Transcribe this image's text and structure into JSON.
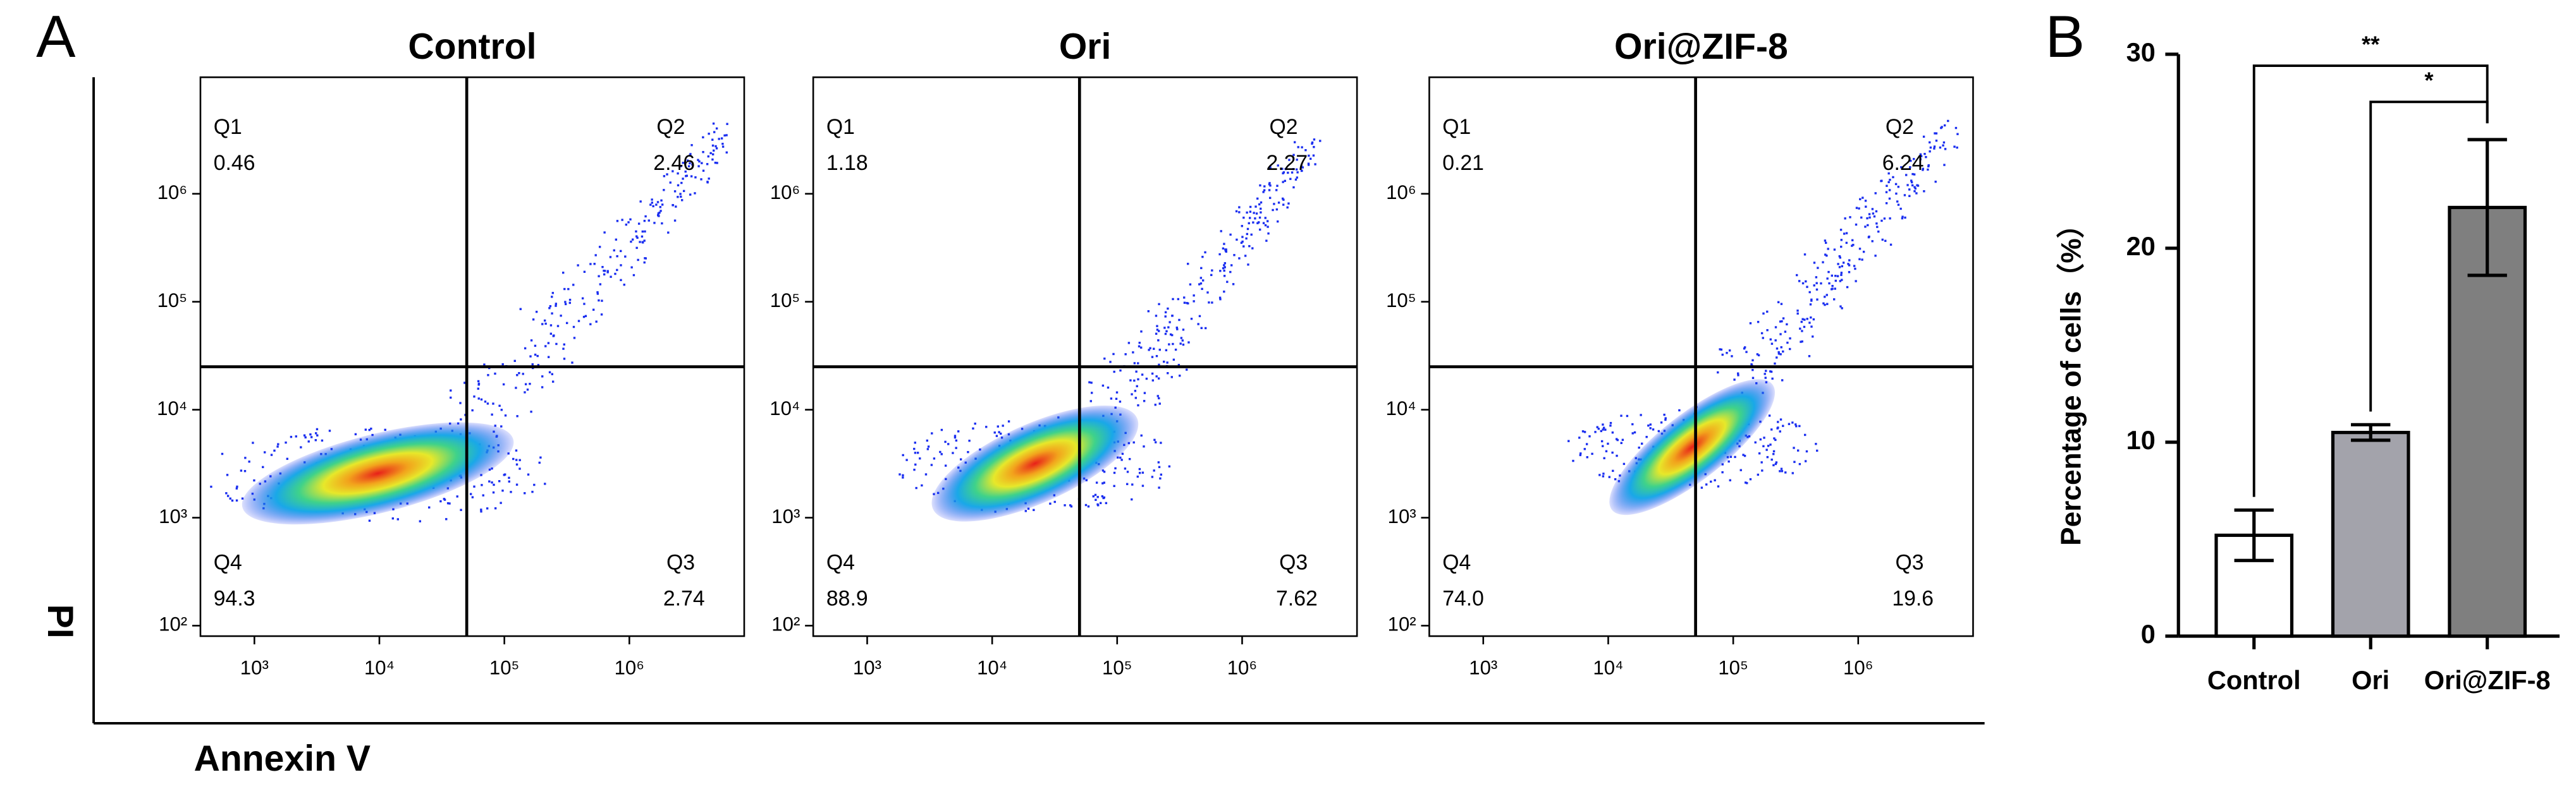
{
  "figure": {
    "panel_labels": [
      "A",
      "B"
    ],
    "y_axis_label": "PI",
    "x_axis_label": "Annexin V",
    "flow_axes": {
      "log": true,
      "xlim": [
        370,
        8300000
      ],
      "ylim": [
        80,
        12000000
      ],
      "xticks": [
        {
          "value": 1000,
          "label": "10³"
        },
        {
          "value": 10000,
          "label": "10⁴"
        },
        {
          "value": 100000,
          "label": "10⁵"
        },
        {
          "value": 1000000,
          "label": "10⁶"
        }
      ],
      "yticks": [
        {
          "value": 100,
          "label": "10²"
        },
        {
          "value": 1000,
          "label": "10³"
        },
        {
          "value": 10000,
          "label": "10⁴"
        },
        {
          "value": 100000,
          "label": "10⁵"
        },
        {
          "value": 1000000,
          "label": "10⁶"
        }
      ],
      "gate_x": 50000,
      "gate_y": 25000
    },
    "flow_panels": [
      {
        "title": "Control",
        "quadrants": {
          "names": [
            "Q1",
            "Q2",
            "Q3",
            "Q4"
          ],
          "values": [
            0.46,
            2.46,
            2.74,
            94.3
          ]
        }
      },
      {
        "title": "Ori",
        "quadrants": {
          "names": [
            "Q1",
            "Q2",
            "Q3",
            "Q4"
          ],
          "values": [
            1.18,
            2.27,
            7.62,
            88.9
          ]
        }
      },
      {
        "title": "Ori@ZIF-8",
        "quadrants": {
          "names": [
            "Q1",
            "Q2",
            "Q3",
            "Q4"
          ],
          "values": [
            0.21,
            6.24,
            19.6,
            {
              "value": 74.0,
              "label": "74.0"
            }
          ]
        }
      }
    ]
  },
  "chart_data": {
    "type": "bar",
    "y_label": "Percentage of cells（%）",
    "categories": [
      "Control",
      "Ori",
      "Ori@ZIF-8"
    ],
    "values": [
      5.2,
      10.5,
      22.1
    ],
    "errors": [
      1.3,
      0.4,
      3.5
    ],
    "colors": [
      "#ffffff",
      "#a3a3ab",
      "#7f7f7f"
    ],
    "ylim": [
      0,
      30
    ],
    "yticks": [
      0,
      10,
      20,
      30
    ],
    "annotations": [
      "**",
      "*"
    ]
  }
}
